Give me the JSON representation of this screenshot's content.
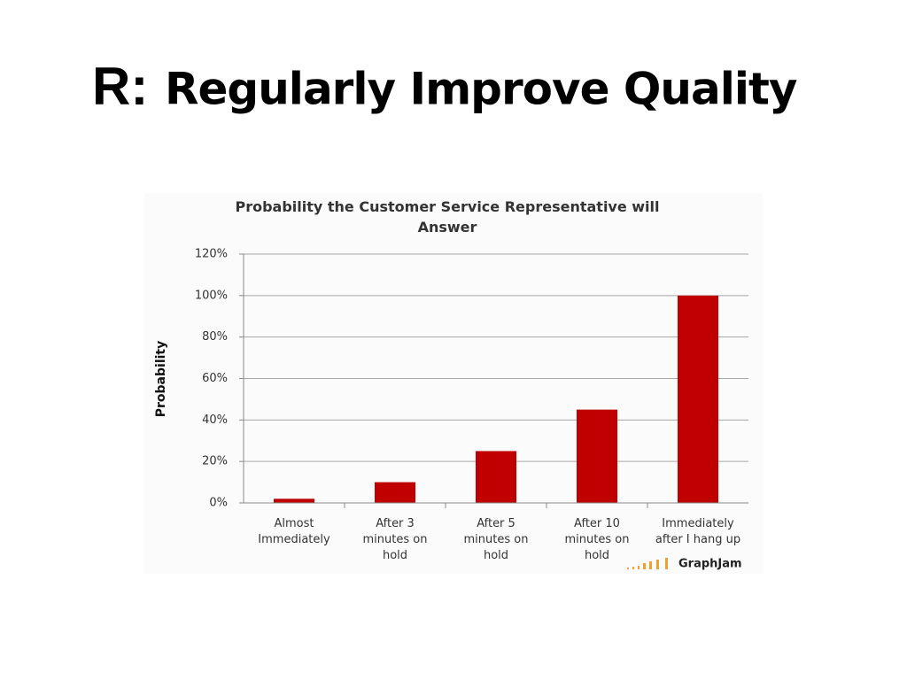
{
  "slide_title": {
    "letter": "R:",
    "text": "Regularly Improve Quality"
  },
  "watermark": "GraphJam",
  "chart_data": {
    "type": "bar",
    "title": "Probability the Customer Service Representative will\nAnswer",
    "y_label": "Probability",
    "categories": [
      "Almost\nImmediately",
      "After 3\nminutes on\nhold",
      "After 5\nminutes on\nhold",
      "After 10\nminutes on\nhold",
      "Immediately\nafter I hang up"
    ],
    "values": [
      2,
      10,
      25,
      45,
      100
    ],
    "color": "#c00000",
    "ylim": [
      0,
      120
    ],
    "yticks": [
      {
        "value": 0,
        "label": "0%"
      },
      {
        "value": 20,
        "label": "20%"
      },
      {
        "value": 40,
        "label": "40%"
      },
      {
        "value": 60,
        "label": "60%"
      },
      {
        "value": 80,
        "label": "80%"
      },
      {
        "value": 100,
        "label": "100%"
      },
      {
        "value": 120,
        "label": "120%"
      }
    ],
    "grid": true
  }
}
